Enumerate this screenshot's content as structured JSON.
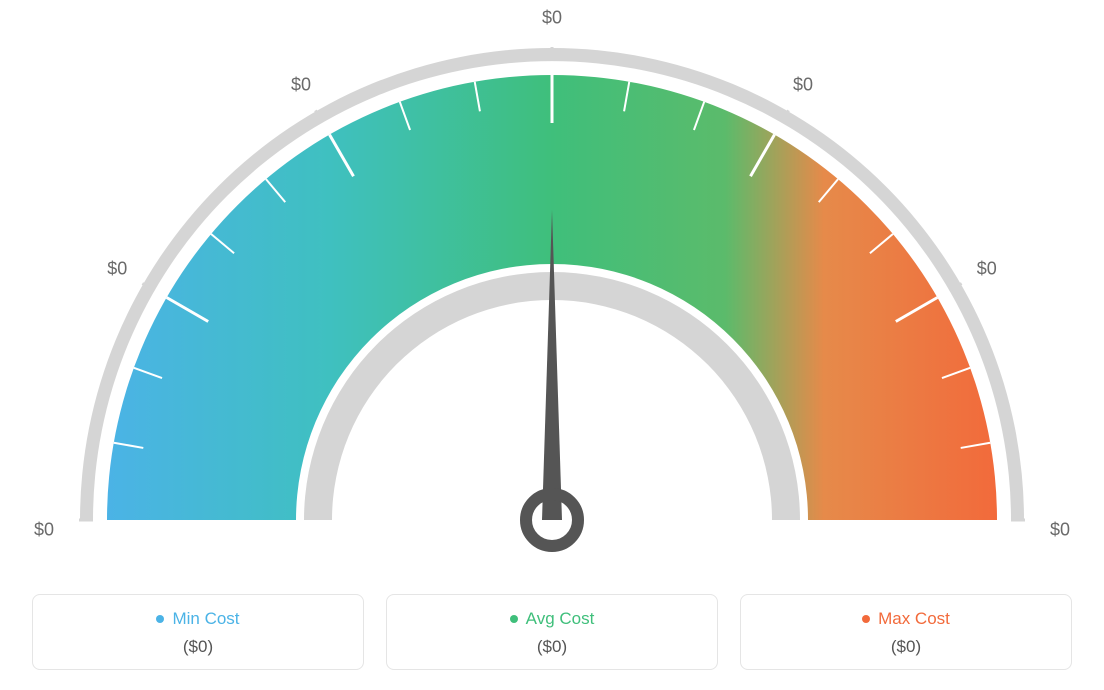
{
  "gauge": {
    "type": "gauge-semicircle",
    "background_color": "#ffffff",
    "outer_ring": {
      "outer_radius": 472,
      "inner_radius": 459,
      "color": "#d5d5d5"
    },
    "colored_arc": {
      "outer_radius": 445,
      "inner_radius": 256,
      "gradient_stops": [
        {
          "angle": 180,
          "color": "#4bb3e6"
        },
        {
          "angle": 135,
          "color": "#3fc0c0"
        },
        {
          "angle": 90,
          "color": "#3fbf7b"
        },
        {
          "angle": 55,
          "color": "#5bbb6b"
        },
        {
          "angle": 35,
          "color": "#e68a4a"
        },
        {
          "angle": 0,
          "color": "#f26a3b"
        }
      ]
    },
    "inner_ring": {
      "outer_radius": 248,
      "inner_radius": 220,
      "color": "#d5d5d5"
    },
    "ticks": {
      "count_major": 7,
      "count_minor_between": 2,
      "major_color_on_arc": "#ffffff",
      "major_color_on_ring": "#d5d5d5",
      "minor_color": "#ffffff",
      "major_width": 3,
      "minor_width": 2,
      "major_len_arc": 48,
      "minor_len_arc": 30,
      "major_len_ring": 12
    },
    "needle": {
      "angle_deg": 90,
      "color": "#555555",
      "length": 310,
      "base_width": 20,
      "hub_outer_r": 34,
      "hub_inner_r": 18,
      "hub_stroke": 12
    },
    "scale_labels": [
      "$0",
      "$0",
      "$0",
      "$0",
      "$0",
      "$0",
      "$0"
    ],
    "scale_label_color": "#6a6a6a",
    "scale_label_fontsize": 18
  },
  "legend": {
    "cards": [
      {
        "key": "min",
        "label": "Min Cost",
        "value": "($0)",
        "color": "#4bb3e6"
      },
      {
        "key": "avg",
        "label": "Avg Cost",
        "value": "($0)",
        "color": "#3fbf7b"
      },
      {
        "key": "max",
        "label": "Max Cost",
        "value": "($0)",
        "color": "#f26a3b"
      }
    ],
    "border_color": "#e5e5e5",
    "border_radius": 8,
    "label_fontsize": 17,
    "value_fontsize": 17,
    "value_color": "#555555"
  }
}
